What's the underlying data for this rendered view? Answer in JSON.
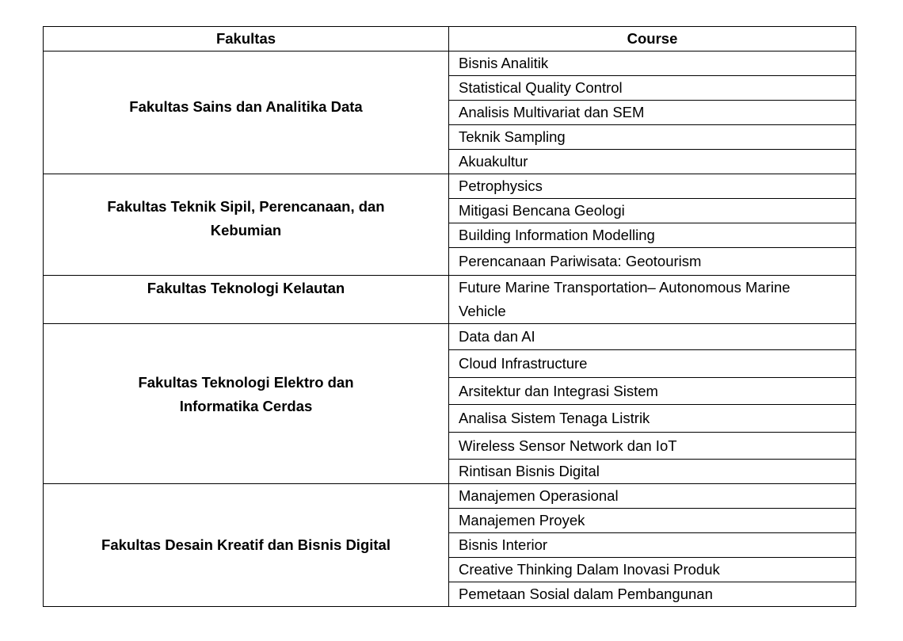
{
  "table": {
    "headers": [
      "Fakultas",
      "Course"
    ],
    "groups": [
      {
        "fakultas": "Fakultas Sains dan Analitika Data",
        "courses": [
          "Bisnis Analitik",
          "Statistical Quality Control",
          "Analisis Multivariat dan SEM",
          "Teknik Sampling",
          "Akuakultur"
        ]
      },
      {
        "fakultas": "Fakultas Teknik Sipil, Perencanaan, dan Kebumian",
        "courses": [
          "Petrophysics",
          "Mitigasi Bencana Geologi",
          "Building Information Modelling",
          "Perencanaan Pariwisata: Geotourism"
        ]
      },
      {
        "fakultas": "Fakultas Teknologi Kelautan",
        "courses": [
          "Future Marine Transportation– Autonomous Marine Vehicle"
        ]
      },
      {
        "fakultas": "Fakultas Teknologi Elektro dan Informatika Cerdas",
        "courses": [
          "Data dan AI",
          "Cloud Infrastructure",
          "Arsitektur dan Integrasi Sistem",
          "Analisa Sistem Tenaga Listrik",
          "Wireless Sensor Network dan IoT",
          "Rintisan Bisnis Digital"
        ]
      },
      {
        "fakultas": "Fakultas Desain Kreatif dan Bisnis Digital",
        "courses": [
          "Manajemen Operasional",
          "Manajemen Proyek",
          "Bisnis Interior",
          "Creative Thinking Dalam Inovasi Produk",
          "Pemetaan Sosial dalam Pembangunan"
        ]
      }
    ]
  }
}
